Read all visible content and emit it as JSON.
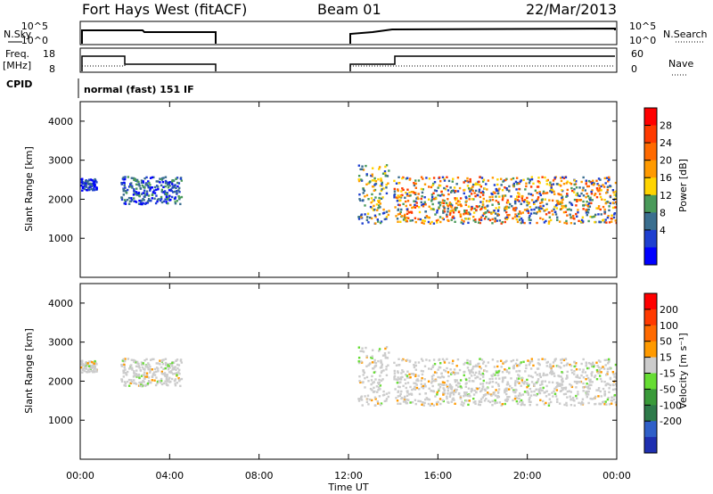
{
  "header": {
    "station": "Fort Hays West (fitACF)",
    "beam": "Beam 01",
    "date": "22/Mar/2013"
  },
  "info_panels": {
    "nsky_label": "N.Sky",
    "nsearch_label": "N.Search",
    "nsky_ticks": [
      "10^5",
      "10^0"
    ],
    "nsearch_ticks": [
      "10^5",
      "10^0"
    ],
    "freq_label_1": "Freq.",
    "freq_label_2": "[MHz]",
    "freq_ticks": [
      "18",
      "8"
    ],
    "nave_label": "Nave",
    "nave_ticks": [
      "60",
      "0"
    ],
    "cpid_label": "CPID",
    "cpid_text": "normal (fast) 151 IF"
  },
  "chart_data": [
    {
      "type": "heatmap",
      "panel": "power",
      "ylabel": "Slant Range [km]",
      "yticks": [
        "4000",
        "3000",
        "2000",
        "1000"
      ],
      "ylim_km": [
        0,
        4500
      ],
      "colorbar_label": "Power [dB]",
      "colorbar_ticks": [
        "28",
        "24",
        "20",
        "16",
        "12",
        "8",
        "4"
      ],
      "colorbar_colors": [
        "#0000ff",
        "#1e3fd0",
        "#3a6e8f",
        "#4a9a5a",
        "#ffd400",
        "#ff9a00",
        "#ff6a00",
        "#ff3a00",
        "#ff0000"
      ],
      "regions_hours_km": [
        {
          "t": [
            0.0,
            0.7
          ],
          "range": [
            2250,
            2550
          ],
          "level": "low"
        },
        {
          "t": [
            1.8,
            4.5
          ],
          "range": [
            1900,
            2600
          ],
          "level": "low-mid"
        },
        {
          "t": [
            12.4,
            13.8
          ],
          "range": [
            1400,
            2900
          ],
          "level": "mid"
        },
        {
          "t": [
            14.0,
            24.0
          ],
          "range": [
            1400,
            2600
          ],
          "level": "mid-high"
        }
      ]
    },
    {
      "type": "heatmap",
      "panel": "velocity",
      "ylabel": "Slant Range [km]",
      "yticks": [
        "4000",
        "3000",
        "2000",
        "1000"
      ],
      "ylim_km": [
        0,
        4500
      ],
      "colorbar_label": "Velocity [m s⁻¹]",
      "colorbar_ticks": [
        "200",
        "100",
        "50",
        "15",
        "-15",
        "-50",
        "-100",
        "-200"
      ],
      "colorbar_colors": [
        "#1e2fb0",
        "#2f5fc8",
        "#2e7a4a",
        "#3a9a3a",
        "#66dd33",
        "#cccccc",
        "#ff9a00",
        "#ff6a00",
        "#ff3a00",
        "#ff0000"
      ],
      "xlabel": "Time UT",
      "xticks": [
        "00:00",
        "04:00",
        "08:00",
        "12:00",
        "16:00",
        "20:00",
        "00:00"
      ],
      "xlim_hours": [
        0,
        24
      ]
    }
  ]
}
